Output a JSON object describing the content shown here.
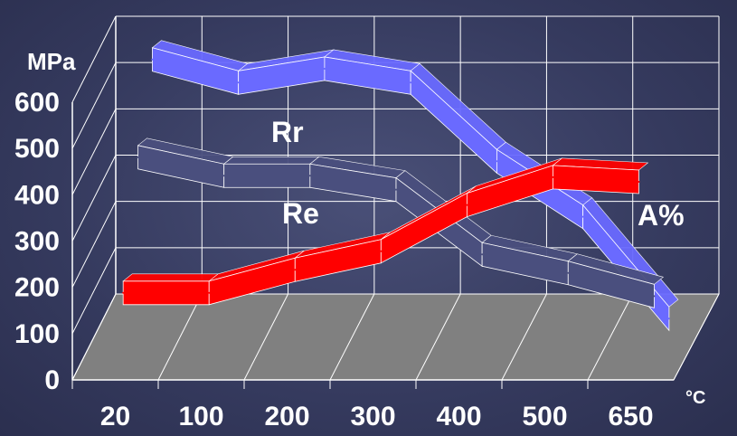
{
  "chart_data": {
    "type": "line",
    "categories": [
      "20",
      "100",
      "200",
      "300",
      "400",
      "500",
      "650"
    ],
    "y_ticks": [
      "0",
      "100",
      "200",
      "300",
      "400",
      "500",
      "600"
    ],
    "ylim": [
      0,
      600
    ],
    "ylabel": "MPa",
    "xunit": "°C",
    "grid": true,
    "series": [
      {
        "name": "A%",
        "values": [
          180,
          180,
          230,
          270,
          370,
          430,
          420
        ],
        "color": "#ff0000",
        "depth": 0
      },
      {
        "name": "Re",
        "values": [
          410,
          370,
          370,
          340,
          200,
          160,
          110
        ],
        "color": "#4a4f7e",
        "depth": 1
      },
      {
        "name": "Rr",
        "values": [
          560,
          510,
          540,
          510,
          340,
          220,
          0
        ],
        "color": "#6a6aff",
        "depth": 2
      }
    ]
  }
}
